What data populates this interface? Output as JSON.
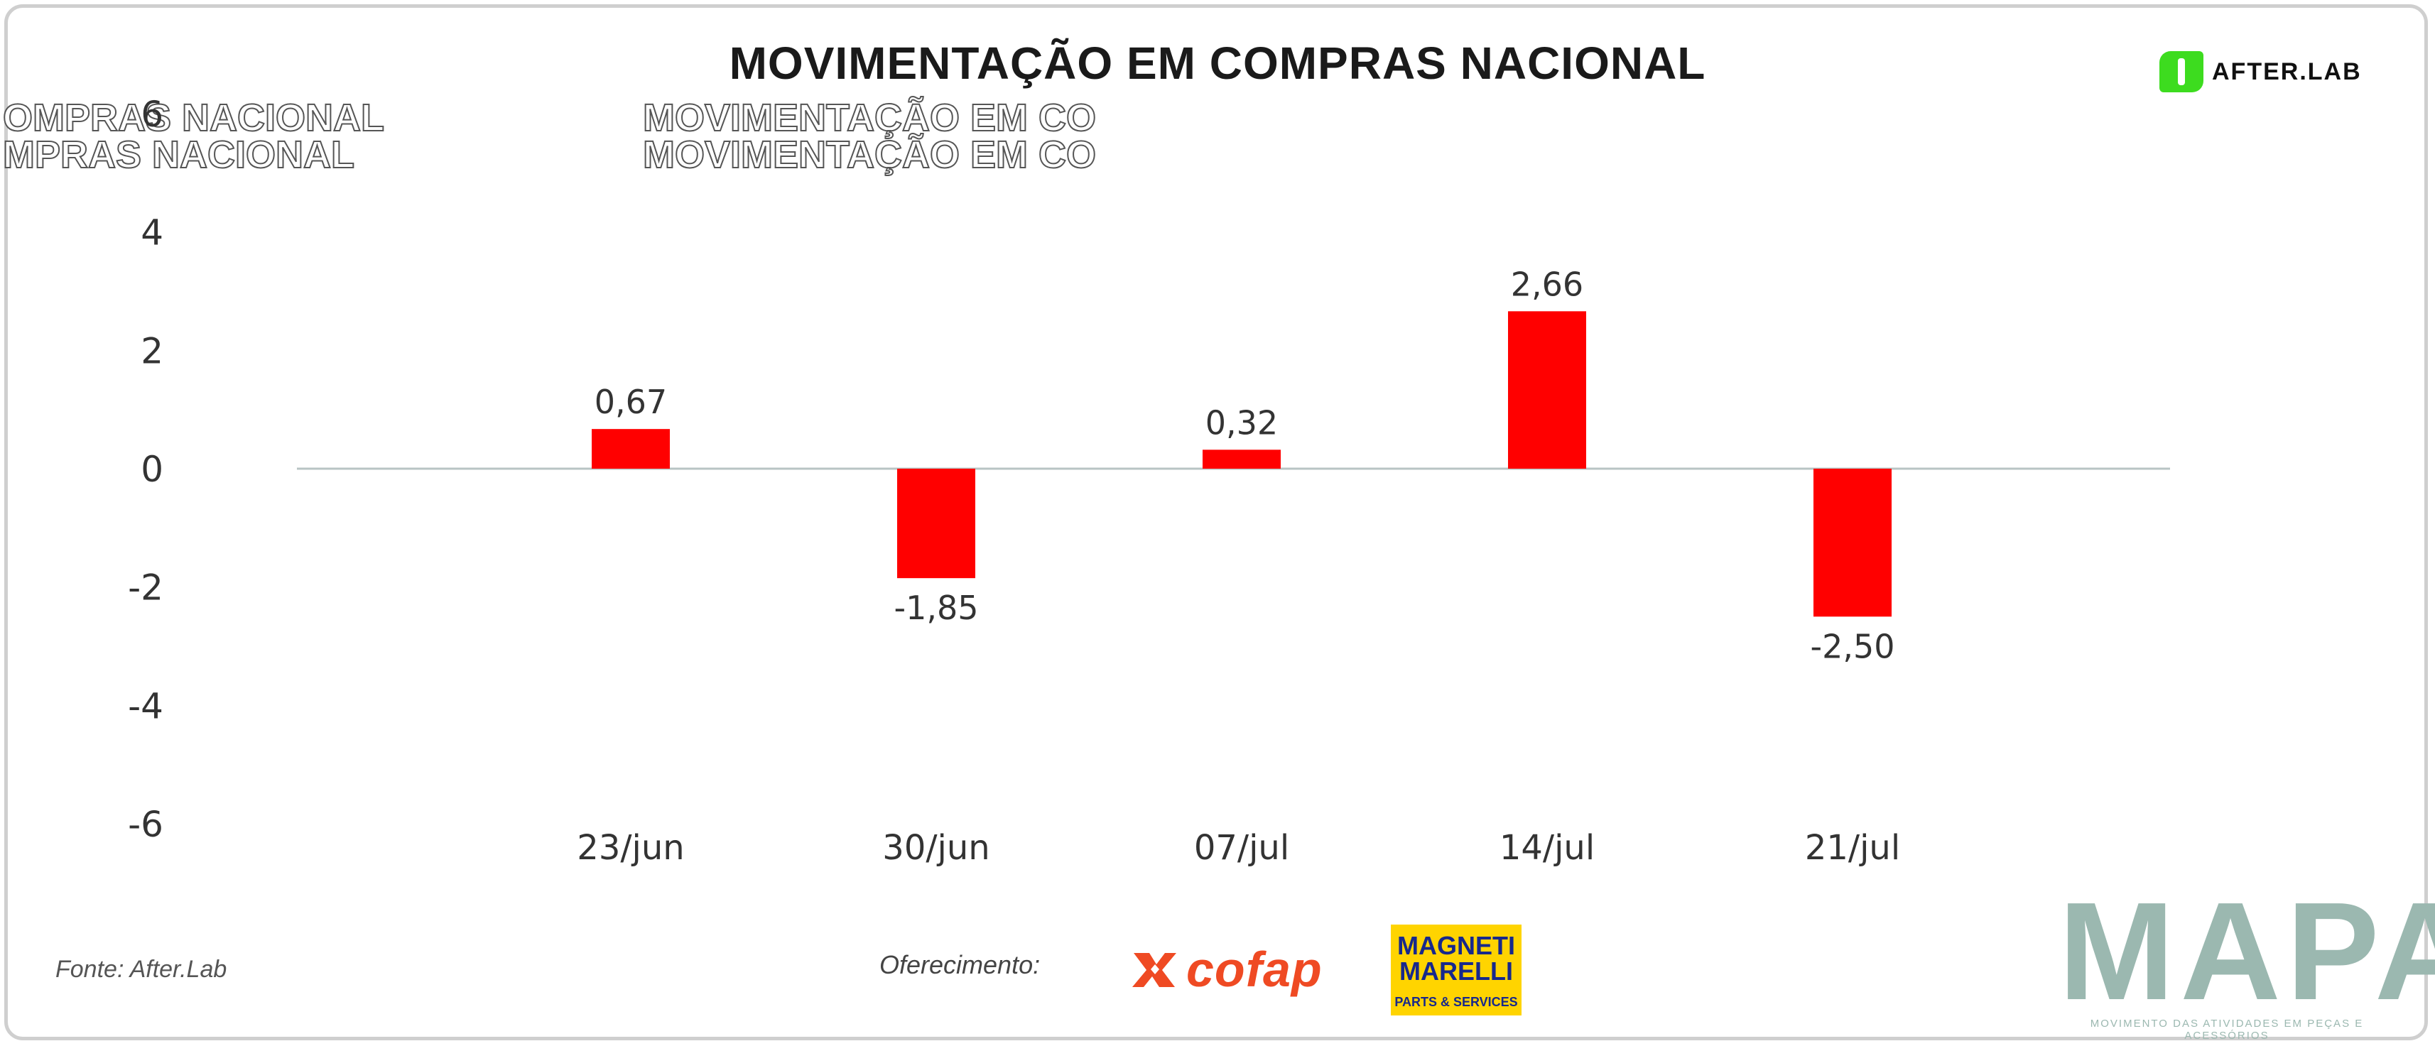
{
  "title": "MOVIMENTAÇÃO EM COMPRAS NACIONAL",
  "ghost_text": {
    "left_line1": "OMPRAS NACIONAL",
    "left_line2": "MPRAS NACIONAL",
    "mid_line1": "MOVIMENTAÇÃO EM CO",
    "mid_line2": "MOVIMENTAÇÃO EM CO"
  },
  "brand": {
    "afterlab": "AFTER.LAB"
  },
  "footer": {
    "source": "Fonte: After.Lab",
    "sponsor_label": "Oferecimento:",
    "cofap": "cofap",
    "magneti_line1": "MAGNETI",
    "magneti_line2": "MARELLI",
    "magneti_line3": "PARTS & SERVICES",
    "mapa": "MAPA",
    "mapa_tagline": "MOVIMENTO DAS ATIVIDADES EM PEÇAS E ACESSÓRIOS"
  },
  "colors": {
    "bar": "#ff0000",
    "zero_line": "#b8c4c4",
    "text": "#333333"
  },
  "chart_data": {
    "type": "bar",
    "title": "MOVIMENTAÇÃO EM COMPRAS NACIONAL",
    "categories": [
      "23/jun",
      "30/jun",
      "07/jul",
      "14/jul",
      "21/jul"
    ],
    "values": [
      0.67,
      -1.85,
      0.32,
      2.66,
      -2.5
    ],
    "value_labels": [
      "0,67",
      "-1,85",
      "0,32",
      "2,66",
      "-2,50"
    ],
    "ylim": [
      -6,
      6
    ],
    "yticks": [
      6,
      4,
      2,
      0,
      -2,
      -4,
      -6
    ],
    "ytick_labels": [
      "6",
      "4",
      "2",
      "0",
      "-2",
      "-4",
      "-6"
    ],
    "xlabel": "",
    "ylabel": "",
    "grid": false,
    "legend": "none"
  }
}
